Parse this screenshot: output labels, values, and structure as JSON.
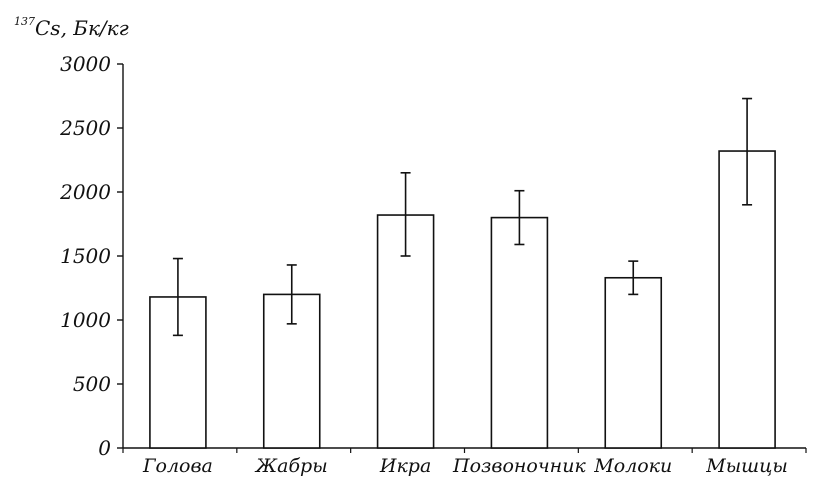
{
  "chart_data": {
    "type": "bar",
    "title": "",
    "xlabel": "",
    "ylabel": {
      "isotope_mass": "137",
      "isotope_symbol": "Cs",
      "unit": ", Бк/кг"
    },
    "categories": [
      "Голова",
      "Жабры",
      "Икра",
      "Позвоночник",
      "Молоки",
      "Мышцы"
    ],
    "values": [
      1180,
      1200,
      1820,
      1800,
      1330,
      2320
    ],
    "error_low": [
      880,
      970,
      1500,
      1590,
      1200,
      1900
    ],
    "error_high": [
      1480,
      1430,
      2150,
      2010,
      1460,
      2730
    ],
    "ylim": [
      0,
      3000
    ],
    "yticks": [
      0,
      500,
      1000,
      1500,
      2000,
      2500,
      3000
    ],
    "ytick_labels": [
      "0",
      "500",
      "1000",
      "1500",
      "2000",
      "2500",
      "3000"
    ],
    "grid": false,
    "bar_fill": "#ffffff",
    "bar_stroke": "#111111"
  }
}
